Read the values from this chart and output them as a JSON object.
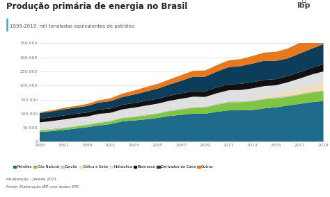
{
  "title": "Produção primária de energia no Brasil",
  "subtitle": "1995-2019, mil toneladas equivalentes de petróleo",
  "footer_line1": "Atualização - Janeiro 2021",
  "footer_line2": "Fonte: Elaboração IBP com dados EPE",
  "years": [
    1995,
    1996,
    1997,
    1998,
    1999,
    2000,
    2001,
    2002,
    2003,
    2004,
    2005,
    2006,
    2007,
    2008,
    2009,
    2010,
    2011,
    2012,
    2013,
    2014,
    2015,
    2016,
    2017,
    2018,
    2019
  ],
  "series_order": [
    "Petróleo",
    "Gás Natural",
    "Carvão",
    "Eólica e Solar",
    "Hidráulica",
    "Biomassa",
    "Derivados da Cana",
    "Outras"
  ],
  "series": {
    "Petróleo": [
      35000,
      38000,
      42000,
      47000,
      52000,
      58000,
      63000,
      73000,
      76000,
      80000,
      85000,
      92000,
      96000,
      100000,
      100000,
      107000,
      112000,
      112000,
      113000,
      119000,
      123000,
      129000,
      135000,
      141000,
      145000
    ],
    "Gás Natural": [
      5000,
      5500,
      6200,
      7000,
      7500,
      9000,
      10000,
      11000,
      12000,
      14000,
      15000,
      17000,
      19000,
      21000,
      22000,
      25000,
      28000,
      29000,
      31000,
      32000,
      32000,
      31000,
      32000,
      34000,
      35000
    ],
    "Carvão": [
      3000,
      3100,
      3200,
      3300,
      3400,
      3400,
      3300,
      3400,
      3500,
      3600,
      3600,
      3700,
      3800,
      3900,
      3800,
      3900,
      4000,
      4100,
      4100,
      4100,
      4000,
      3900,
      4000,
      4100,
      4200
    ],
    "Eólica e Solar": [
      0,
      0,
      0,
      0,
      0,
      0,
      0,
      0,
      100,
      200,
      300,
      400,
      600,
      700,
      800,
      1000,
      1500,
      2000,
      3000,
      5000,
      8000,
      11000,
      15000,
      19000,
      24000
    ],
    "Hidráulica": [
      26000,
      27000,
      28000,
      28000,
      27000,
      29000,
      27000,
      28000,
      30000,
      31000,
      32000,
      33000,
      34000,
      35000,
      33000,
      36000,
      38000,
      37000,
      39000,
      38000,
      34000,
      37000,
      39000,
      41000,
      42000
    ],
    "Biomassa": [
      13000,
      13500,
      14000,
      14000,
      14500,
      15000,
      15500,
      16000,
      16500,
      17000,
      17500,
      18000,
      19000,
      20000,
      20000,
      21000,
      21000,
      22000,
      22000,
      22000,
      22000,
      22000,
      23000,
      24000,
      25000
    ],
    "Derivados da Cana": [
      20000,
      21000,
      22000,
      22000,
      23000,
      25000,
      26000,
      28000,
      30000,
      33000,
      36000,
      40000,
      45000,
      51000,
      52000,
      56000,
      61000,
      63000,
      66000,
      68000,
      65000,
      63000,
      66000,
      68000,
      72000
    ],
    "Outras": [
      3000,
      4000,
      5000,
      6000,
      7000,
      8000,
      10000,
      12000,
      14000,
      16000,
      17000,
      18000,
      20000,
      21000,
      22000,
      23000,
      24000,
      25000,
      27000,
      29000,
      32000,
      35000,
      38000,
      41000,
      44000
    ]
  },
  "colors": {
    "Petróleo": "#1e6b8c",
    "Gás Natural": "#7dc542",
    "Carvão": "#c8c8c8",
    "Eólica e Solar": "#f0e0b0",
    "Hidráulica": "#e0e0e0",
    "Biomassa": "#111111",
    "Derivados da Cana": "#0d3d5a",
    "Outras": "#e8781e"
  },
  "ylim": [
    0,
    350000
  ],
  "yticks": [
    0,
    50000,
    100000,
    150000,
    200000,
    250000,
    300000,
    350000
  ],
  "ytick_labels": [
    "0",
    "50.000",
    "100.000",
    "150.000",
    "200.000",
    "250.000",
    "300.000",
    "350.000"
  ],
  "xticks": [
    1995,
    1997,
    1999,
    2001,
    2003,
    2005,
    2007,
    2009,
    2011,
    2013,
    2015,
    2017,
    2019
  ],
  "background_color": "#ffffff",
  "plot_bg_color": "#ffffff"
}
